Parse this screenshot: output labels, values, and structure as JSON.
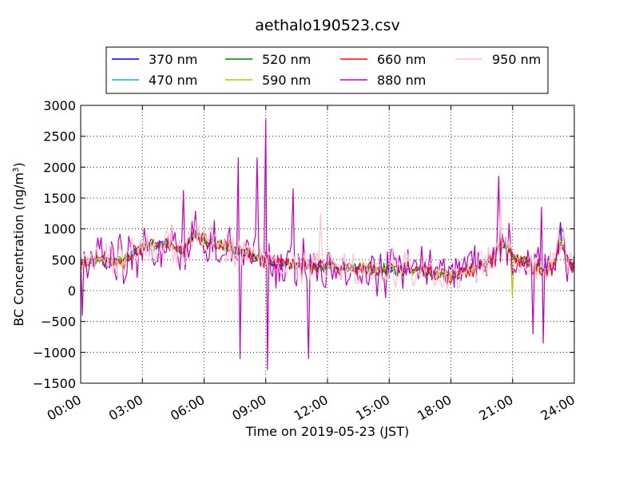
{
  "chart_data": {
    "type": "line",
    "title": "aethalo190523.csv",
    "xlabel": "Time on 2019-05-23 (JST)",
    "ylabel_prefix": "BC Concentration (ng/m",
    "ylabel_sup": "3",
    "ylabel_suffix": ")",
    "xlim": [
      0,
      24
    ],
    "ylim": [
      -1500,
      3000
    ],
    "x_ticks": [
      0,
      3,
      6,
      9,
      12,
      15,
      18,
      21,
      24
    ],
    "x_tick_labels": [
      "00:00",
      "03:00",
      "06:00",
      "09:00",
      "12:00",
      "15:00",
      "18:00",
      "21:00",
      "24:00"
    ],
    "y_ticks": [
      -1500,
      -1000,
      -500,
      0,
      500,
      1000,
      1500,
      2000,
      2500,
      3000
    ],
    "y_tick_labels": [
      "−1500",
      "−1000",
      "−500",
      "0",
      "500",
      "1000",
      "1500",
      "2000",
      "2500",
      "3000"
    ],
    "grid": true,
    "legend_position": "top, above plot",
    "x_step_hours": 0.0833,
    "series": [
      {
        "name": "370 nm",
        "color": "#0000ff"
      },
      {
        "name": "470 nm",
        "color": "#00bfbf"
      },
      {
        "name": "520 nm",
        "color": "#008000"
      },
      {
        "name": "590 nm",
        "color": "#bfbf00"
      },
      {
        "name": "660 nm",
        "color": "#ff0000"
      },
      {
        "name": "880 nm",
        "color": "#bf00bf"
      },
      {
        "name": "950 nm",
        "color": "#ffc0cb"
      }
    ],
    "baseline_profile": [
      [
        0,
        450
      ],
      [
        1,
        480
      ],
      [
        2,
        470
      ],
      [
        3,
        700
      ],
      [
        4,
        780
      ],
      [
        5,
        650
      ],
      [
        5.5,
        900
      ],
      [
        6,
        800
      ],
      [
        7,
        720
      ],
      [
        8,
        600
      ],
      [
        9,
        500
      ],
      [
        10,
        420
      ],
      [
        11,
        380
      ],
      [
        12,
        400
      ],
      [
        13,
        380
      ],
      [
        14,
        350
      ],
      [
        15,
        350
      ],
      [
        16,
        330
      ],
      [
        17,
        300
      ],
      [
        18,
        230
      ],
      [
        19,
        350
      ],
      [
        20,
        480
      ],
      [
        20.5,
        800
      ],
      [
        21,
        560
      ],
      [
        22,
        400
      ],
      [
        23,
        350
      ],
      [
        23.3,
        800
      ],
      [
        24,
        300
      ]
    ],
    "noise_amplitude": {
      "370 nm": 60,
      "470 nm": 65,
      "520 nm": 75,
      "590 nm": 90,
      "660 nm": 110,
      "880 nm": 320,
      "950 nm": 230
    },
    "notable_points": [
      {
        "series": "880 nm",
        "x": 9.0,
        "y": 2770
      },
      {
        "series": "880 nm",
        "x": 9.0,
        "y": -1280
      },
      {
        "series": "880 nm",
        "x": 7.7,
        "y": 2150
      },
      {
        "series": "880 nm",
        "x": 7.7,
        "y": -1100
      },
      {
        "series": "880 nm",
        "x": 8.6,
        "y": 2150
      },
      {
        "series": "880 nm",
        "x": 10.3,
        "y": 1650
      },
      {
        "series": "880 nm",
        "x": 11.05,
        "y": -1100
      },
      {
        "series": "880 nm",
        "x": 5.0,
        "y": 1620
      },
      {
        "series": "880 nm",
        "x": 20.3,
        "y": 1850
      },
      {
        "series": "880 nm",
        "x": 22.5,
        "y": -850
      },
      {
        "series": "880 nm",
        "x": 22.0,
        "y": -700
      },
      {
        "series": "880 nm",
        "x": 22.4,
        "y": 1350
      },
      {
        "series": "880 nm",
        "x": 0.05,
        "y": -400
      },
      {
        "series": "370 nm",
        "x": 23.3,
        "y": 1100
      },
      {
        "series": "950 nm",
        "x": 11.7,
        "y": 1250
      },
      {
        "series": "950 nm",
        "x": 20.4,
        "y": 1480
      },
      {
        "series": "660 nm",
        "x": 20.5,
        "y": 920
      },
      {
        "series": "590 nm",
        "x": 21.0,
        "y": -100
      }
    ]
  }
}
